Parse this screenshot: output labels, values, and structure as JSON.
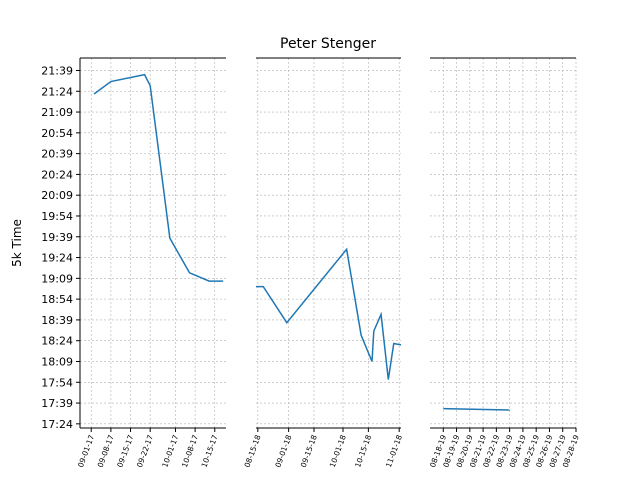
{
  "chart_data": [
    {
      "type": "line",
      "ylabel": "5k Time",
      "ylim": [
        1041,
        1308
      ],
      "yticks": [
        {
          "value": 1044,
          "label": "17:24"
        },
        {
          "value": 1059,
          "label": "17:39"
        },
        {
          "value": 1074,
          "label": "17:54"
        },
        {
          "value": 1089,
          "label": "18:09"
        },
        {
          "value": 1104,
          "label": "18:24"
        },
        {
          "value": 1119,
          "label": "18:39"
        },
        {
          "value": 1134,
          "label": "18:54"
        },
        {
          "value": 1149,
          "label": "19:09"
        },
        {
          "value": 1164,
          "label": "19:24"
        },
        {
          "value": 1179,
          "label": "19:39"
        },
        {
          "value": 1194,
          "label": "19:54"
        },
        {
          "value": 1209,
          "label": "20:09"
        },
        {
          "value": 1224,
          "label": "20:24"
        },
        {
          "value": 1239,
          "label": "20:39"
        },
        {
          "value": 1254,
          "label": "20:54"
        },
        {
          "value": 1269,
          "label": "21:09"
        },
        {
          "value": 1284,
          "label": "21:24"
        },
        {
          "value": 1299,
          "label": "21:39"
        }
      ],
      "xlim": [
        "2017-08-28",
        "2017-10-19"
      ],
      "xticks": [
        {
          "value": "2017-09-01",
          "label": "09-01-17"
        },
        {
          "value": "2017-09-08",
          "label": "09-08-17"
        },
        {
          "value": "2017-09-15",
          "label": "09-15-17"
        },
        {
          "value": "2017-09-22",
          "label": "09-22-17"
        },
        {
          "value": "2017-10-01",
          "label": "10-01-17"
        },
        {
          "value": "2017-10-08",
          "label": "10-08-17"
        },
        {
          "value": "2017-10-15",
          "label": "10-15-17"
        }
      ],
      "x": [
        "2017-09-02",
        "2017-09-08",
        "2017-09-20",
        "2017-09-22",
        "2017-09-29",
        "2017-10-06",
        "2017-10-13",
        "2017-10-18"
      ],
      "values": [
        1282,
        1291,
        1296,
        1288,
        1178,
        1153,
        1147,
        1147
      ],
      "color": "#1f77b4",
      "grid": true
    },
    {
      "type": "line",
      "title": "Peter Stenger",
      "ylim": [
        1041,
        1308
      ],
      "xlim": [
        "2018-08-14",
        "2018-11-02"
      ],
      "xticks": [
        {
          "value": "2018-08-15",
          "label": "08-15-18"
        },
        {
          "value": "2018-09-01",
          "label": "09-01-18"
        },
        {
          "value": "2018-09-15",
          "label": "09-15-18"
        },
        {
          "value": "2018-10-01",
          "label": "10-01-18"
        },
        {
          "value": "2018-10-15",
          "label": "10-15-18"
        },
        {
          "value": "2018-11-01",
          "label": "11-01-18"
        }
      ],
      "x": [
        "2018-08-14",
        "2018-08-18",
        "2018-08-31",
        "2018-10-03",
        "2018-10-11",
        "2018-10-17",
        "2018-10-18",
        "2018-10-22",
        "2018-10-26",
        "2018-10-29",
        "2018-11-02"
      ],
      "values": [
        1143,
        1143,
        1117,
        1170,
        1108,
        1089,
        1111,
        1123,
        1076,
        1102,
        1101
      ],
      "color": "#1f77b4",
      "grid": true
    },
    {
      "type": "line",
      "ylim": [
        1041,
        1308
      ],
      "xlim": [
        "2019-08-17",
        "2019-08-28"
      ],
      "xticks": [
        {
          "value": "2019-08-18",
          "label": "08-18-19"
        },
        {
          "value": "2019-08-19",
          "label": "08-19-19"
        },
        {
          "value": "2019-08-20",
          "label": "08-20-19"
        },
        {
          "value": "2019-08-21",
          "label": "08-21-19"
        },
        {
          "value": "2019-08-22",
          "label": "08-22-19"
        },
        {
          "value": "2019-08-23",
          "label": "08-23-19"
        },
        {
          "value": "2019-08-24",
          "label": "08-24-19"
        },
        {
          "value": "2019-08-25",
          "label": "08-25-19"
        },
        {
          "value": "2019-08-26",
          "label": "08-26-19"
        },
        {
          "value": "2019-08-27",
          "label": "08-27-19"
        },
        {
          "value": "2019-08-28",
          "label": "08-28-19"
        }
      ],
      "x": [
        "2019-08-18",
        "2019-08-23"
      ],
      "values": [
        1055,
        1054
      ],
      "color": "#1f77b4",
      "grid": true
    }
  ]
}
